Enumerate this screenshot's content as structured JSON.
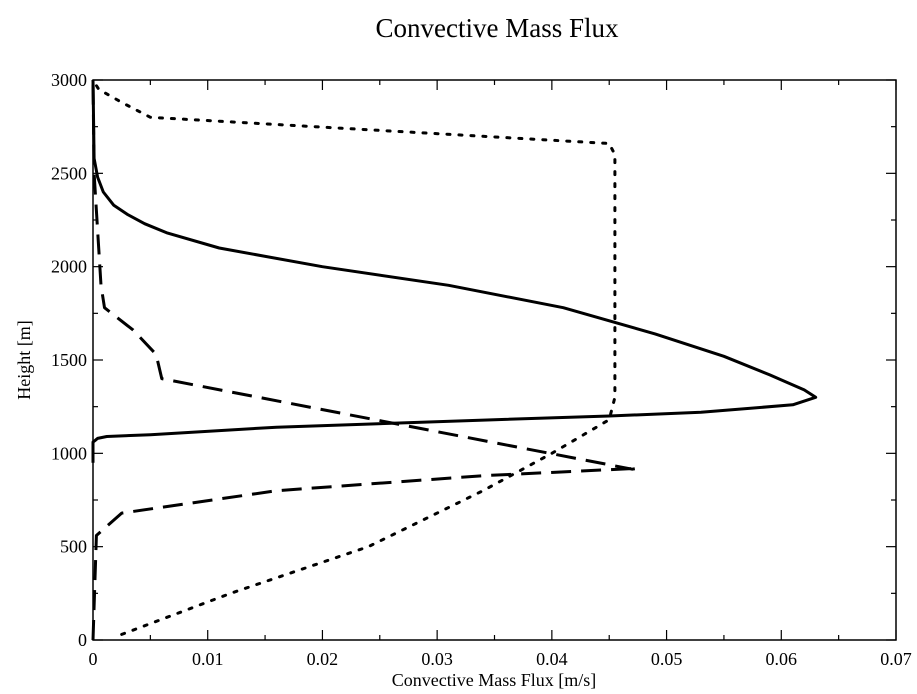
{
  "chart_data": {
    "type": "line",
    "title": "Convective Mass Flux",
    "xlabel": "Convective Mass Flux [m/s]",
    "ylabel": "Height [m]",
    "xlim": [
      0,
      0.07
    ],
    "ylim": [
      0,
      3000
    ],
    "xticks": [
      0,
      0.01,
      0.02,
      0.03,
      0.04,
      0.05,
      0.06,
      0.07
    ],
    "xtick_labels": [
      "0",
      "0.01",
      "0.02",
      "0.03",
      "0.04",
      "0.05",
      "0.06",
      "0.07"
    ],
    "yticks": [
      0,
      500,
      1000,
      1500,
      2000,
      2500,
      3000
    ],
    "ytick_labels": [
      "0",
      "500",
      "1000",
      "1500",
      "2000",
      "2500",
      "3000"
    ],
    "grid": false,
    "legend": "none",
    "series": [
      {
        "style": "solid",
        "color": "#000000",
        "x": [
          0,
          0,
          0.0002,
          0.0004,
          0.0012,
          0.005,
          0.016,
          0.035,
          0.045,
          0.053,
          0.061,
          0.063,
          0.062,
          0.059,
          0.055,
          0.049,
          0.041,
          0.031,
          0.02,
          0.011,
          0.0065,
          0.0045,
          0.003,
          0.0018,
          0.0009,
          0.0004,
          0.0001,
          0
        ],
        "y": [
          950,
          1060,
          1070,
          1080,
          1090,
          1100,
          1140,
          1180,
          1200,
          1220,
          1260,
          1300,
          1340,
          1420,
          1520,
          1640,
          1780,
          1900,
          2000,
          2100,
          2180,
          2230,
          2280,
          2330,
          2400,
          2480,
          2580,
          3000
        ]
      },
      {
        "style": "dashed",
        "color": "#000000",
        "x": [
          0,
          0.0003,
          0.0025,
          0.016,
          0.034,
          0.0475,
          0.047,
          0.006,
          0.0055,
          0.0035,
          0.001,
          0.0007,
          0.0005,
          0.0003,
          0.0001,
          0
        ],
        "y": [
          0,
          560,
          680,
          800,
          880,
          920,
          915,
          1400,
          1530,
          1660,
          1780,
          1900,
          2100,
          2300,
          2500,
          3000
        ]
      },
      {
        "style": "dotted",
        "color": "#000000",
        "x": [
          0.0025,
          0.012,
          0.024,
          0.034,
          0.04,
          0.045,
          0.0455,
          0.0455,
          0.0455,
          0.045,
          0.005,
          0.0025,
          0.0005,
          0
        ],
        "y": [
          30,
          250,
          500,
          800,
          1000,
          1180,
          1300,
          2000,
          2600,
          2660,
          2800,
          2880,
          2950,
          3000
        ]
      }
    ]
  }
}
